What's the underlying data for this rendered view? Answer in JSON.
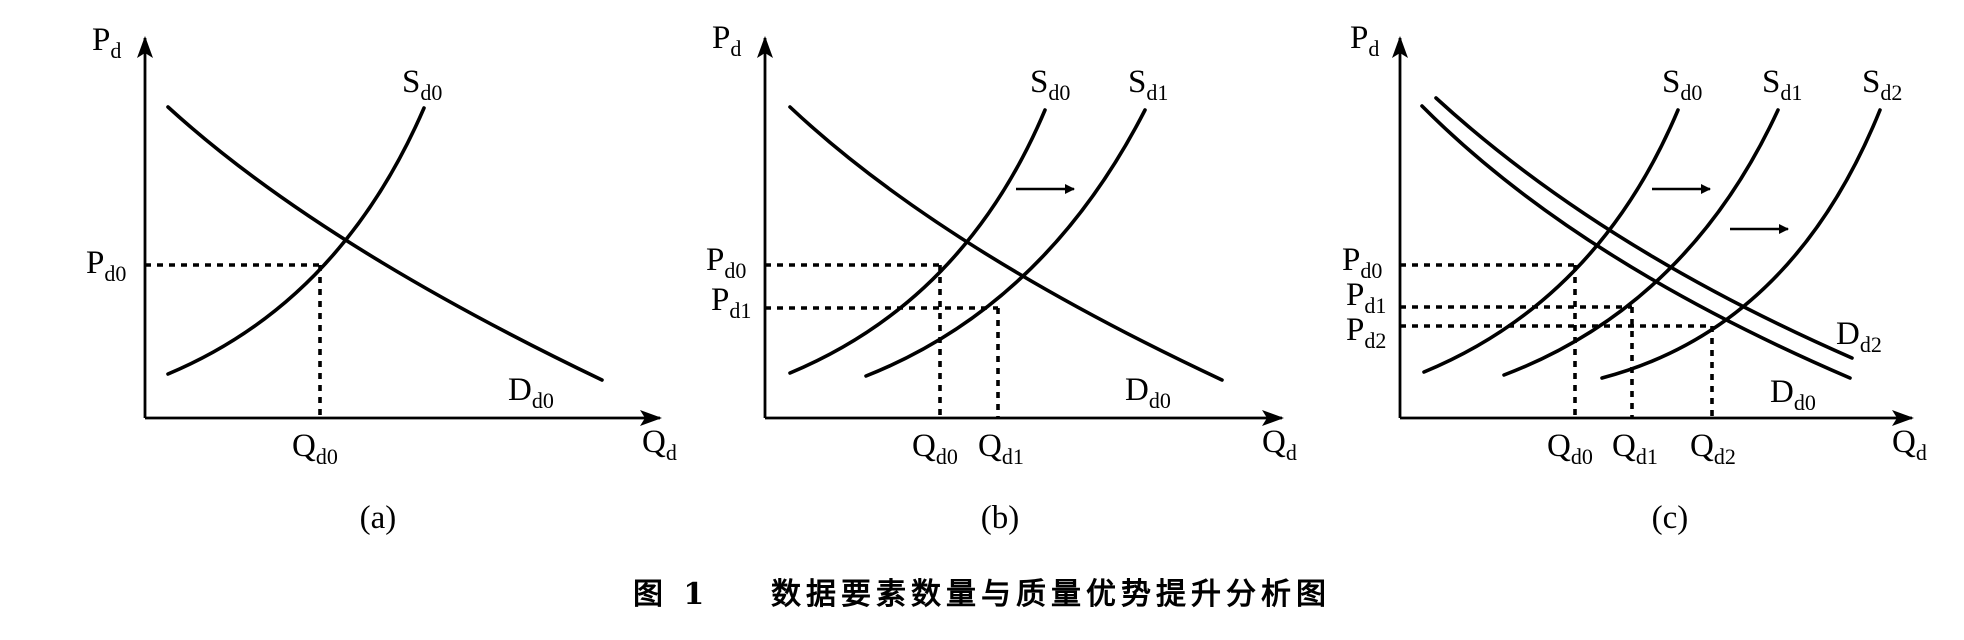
{
  "caption": "图 1    数据要素数量与质量优势提升分析图",
  "panels": [
    {
      "label": "(a)",
      "axis": {
        "y": {
          "base": "P",
          "sub": "d"
        },
        "x": {
          "base": "Q",
          "sub": "d"
        }
      },
      "curves": [
        {
          "base": "S",
          "sub": "d0"
        },
        {
          "base": "D",
          "sub": "d0"
        }
      ],
      "price_ticks": [
        {
          "base": "P",
          "sub": "d0"
        }
      ],
      "quantity_ticks": [
        {
          "base": "Q",
          "sub": "d0"
        }
      ]
    },
    {
      "label": "(b)",
      "axis": {
        "y": {
          "base": "P",
          "sub": "d"
        },
        "x": {
          "base": "Q",
          "sub": "d"
        }
      },
      "curves": [
        {
          "base": "S",
          "sub": "d0"
        },
        {
          "base": "S",
          "sub": "d1"
        },
        {
          "base": "D",
          "sub": "d0"
        }
      ],
      "price_ticks": [
        {
          "base": "P",
          "sub": "d0"
        },
        {
          "base": "P",
          "sub": "d1"
        }
      ],
      "quantity_ticks": [
        {
          "base": "Q",
          "sub": "d0"
        },
        {
          "base": "Q",
          "sub": "d1"
        }
      ]
    },
    {
      "label": "(c)",
      "axis": {
        "y": {
          "base": "P",
          "sub": "d"
        },
        "x": {
          "base": "Q",
          "sub": "d"
        }
      },
      "curves": [
        {
          "base": "S",
          "sub": "d0"
        },
        {
          "base": "S",
          "sub": "d1"
        },
        {
          "base": "S",
          "sub": "d2"
        },
        {
          "base": "D",
          "sub": "d2"
        },
        {
          "base": "D",
          "sub": "d0"
        }
      ],
      "price_ticks": [
        {
          "base": "P",
          "sub": "d0"
        },
        {
          "base": "P",
          "sub": "d1"
        },
        {
          "base": "P",
          "sub": "d2"
        }
      ],
      "quantity_ticks": [
        {
          "base": "Q",
          "sub": "d0"
        },
        {
          "base": "Q",
          "sub": "d1"
        },
        {
          "base": "Q",
          "sub": "d2"
        }
      ]
    }
  ]
}
